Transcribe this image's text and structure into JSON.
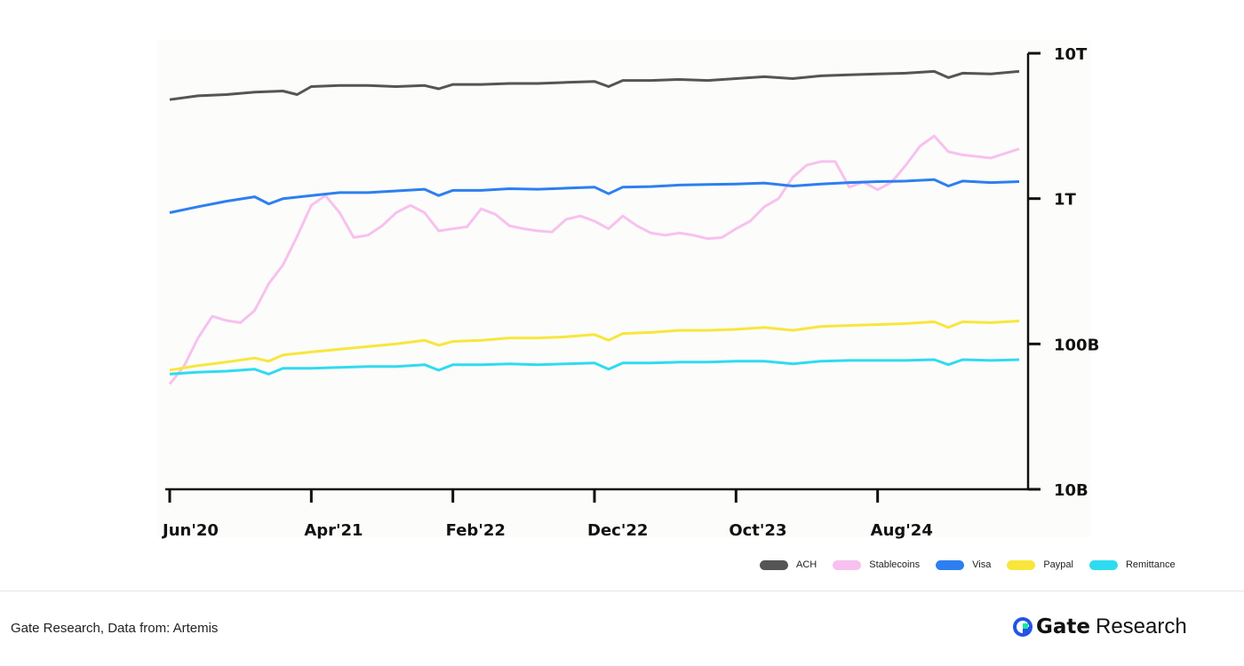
{
  "chart_data": {
    "type": "line",
    "y_scale": "log",
    "ylim": [
      10,
      10000
    ],
    "y_unit": "billions USD",
    "y_ticks": [
      {
        "value": 10,
        "label": "10B"
      },
      {
        "value": 100,
        "label": "100B"
      },
      {
        "value": 1000,
        "label": "1T"
      },
      {
        "value": 10000,
        "label": "10T"
      }
    ],
    "x_start": "2020-06",
    "x_end": "2025-06",
    "x_ticks": [
      {
        "date": "2020-06",
        "label": "Jun'20"
      },
      {
        "date": "2021-04",
        "label": "Apr'21"
      },
      {
        "date": "2022-02",
        "label": "Feb'22"
      },
      {
        "date": "2022-12",
        "label": "Dec'22"
      },
      {
        "date": "2023-10",
        "label": "Oct'23"
      },
      {
        "date": "2024-08",
        "label": "Aug'24"
      }
    ],
    "legend_position": "bottom-right",
    "grid": false,
    "series": [
      {
        "name": "ACH",
        "color": "#555555",
        "points": [
          [
            "2020-06",
            4800
          ],
          [
            "2020-08",
            5100
          ],
          [
            "2020-10",
            5200
          ],
          [
            "2020-12",
            5400
          ],
          [
            "2021-02",
            5500
          ],
          [
            "2021-03",
            5200
          ],
          [
            "2021-04",
            5900
          ],
          [
            "2021-06",
            6000
          ],
          [
            "2021-08",
            6000
          ],
          [
            "2021-10",
            5900
          ],
          [
            "2021-12",
            6000
          ],
          [
            "2022-01",
            5700
          ],
          [
            "2022-02",
            6100
          ],
          [
            "2022-04",
            6100
          ],
          [
            "2022-06",
            6200
          ],
          [
            "2022-08",
            6200
          ],
          [
            "2022-10",
            6300
          ],
          [
            "2022-12",
            6400
          ],
          [
            "2023-01",
            5900
          ],
          [
            "2023-02",
            6500
          ],
          [
            "2023-04",
            6500
          ],
          [
            "2023-06",
            6600
          ],
          [
            "2023-08",
            6500
          ],
          [
            "2023-10",
            6700
          ],
          [
            "2023-12",
            6900
          ],
          [
            "2024-02",
            6700
          ],
          [
            "2024-04",
            7000
          ],
          [
            "2024-06",
            7100
          ],
          [
            "2024-08",
            7200
          ],
          [
            "2024-10",
            7300
          ],
          [
            "2024-12",
            7500
          ],
          [
            "2025-01",
            6800
          ],
          [
            "2025-02",
            7300
          ],
          [
            "2025-04",
            7200
          ],
          [
            "2025-06",
            7500
          ]
        ]
      },
      {
        "name": "Stablecoins",
        "color": "#f7c1ef",
        "points": [
          [
            "2020-06",
            53
          ],
          [
            "2020-07",
            70
          ],
          [
            "2020-08",
            110
          ],
          [
            "2020-09",
            155
          ],
          [
            "2020-10",
            145
          ],
          [
            "2020-11",
            140
          ],
          [
            "2020-12",
            170
          ],
          [
            "2021-01",
            260
          ],
          [
            "2021-02",
            350
          ],
          [
            "2021-03",
            550
          ],
          [
            "2021-04",
            900
          ],
          [
            "2021-05",
            1050
          ],
          [
            "2021-06",
            800
          ],
          [
            "2021-07",
            540
          ],
          [
            "2021-08",
            560
          ],
          [
            "2021-09",
            650
          ],
          [
            "2021-10",
            800
          ],
          [
            "2021-11",
            900
          ],
          [
            "2021-12",
            800
          ],
          [
            "2022-01",
            600
          ],
          [
            "2022-02",
            620
          ],
          [
            "2022-03",
            640
          ],
          [
            "2022-04",
            850
          ],
          [
            "2022-05",
            780
          ],
          [
            "2022-06",
            650
          ],
          [
            "2022-07",
            620
          ],
          [
            "2022-08",
            600
          ],
          [
            "2022-09",
            590
          ],
          [
            "2022-10",
            720
          ],
          [
            "2022-11",
            760
          ],
          [
            "2022-12",
            700
          ],
          [
            "2023-01",
            620
          ],
          [
            "2023-02",
            760
          ],
          [
            "2023-03",
            650
          ],
          [
            "2023-04",
            580
          ],
          [
            "2023-05",
            560
          ],
          [
            "2023-06",
            580
          ],
          [
            "2023-07",
            560
          ],
          [
            "2023-08",
            530
          ],
          [
            "2023-09",
            540
          ],
          [
            "2023-10",
            620
          ],
          [
            "2023-11",
            700
          ],
          [
            "2023-12",
            880
          ],
          [
            "2024-01",
            1000
          ],
          [
            "2024-02",
            1400
          ],
          [
            "2024-03",
            1700
          ],
          [
            "2024-04",
            1800
          ],
          [
            "2024-05",
            1800
          ],
          [
            "2024-06",
            1200
          ],
          [
            "2024-07",
            1300
          ],
          [
            "2024-08",
            1150
          ],
          [
            "2024-09",
            1300
          ],
          [
            "2024-10",
            1700
          ],
          [
            "2024-11",
            2300
          ],
          [
            "2024-12",
            2700
          ],
          [
            "2025-01",
            2100
          ],
          [
            "2025-02",
            2000
          ],
          [
            "2025-04",
            1900
          ],
          [
            "2025-06",
            2200
          ]
        ]
      },
      {
        "name": "Visa",
        "color": "#2d7ff0",
        "points": [
          [
            "2020-06",
            800
          ],
          [
            "2020-08",
            880
          ],
          [
            "2020-10",
            960
          ],
          [
            "2020-12",
            1030
          ],
          [
            "2021-01",
            920
          ],
          [
            "2021-02",
            1000
          ],
          [
            "2021-04",
            1050
          ],
          [
            "2021-06",
            1100
          ],
          [
            "2021-08",
            1100
          ],
          [
            "2021-10",
            1130
          ],
          [
            "2021-12",
            1160
          ],
          [
            "2022-01",
            1050
          ],
          [
            "2022-02",
            1140
          ],
          [
            "2022-04",
            1140
          ],
          [
            "2022-06",
            1170
          ],
          [
            "2022-08",
            1160
          ],
          [
            "2022-10",
            1180
          ],
          [
            "2022-12",
            1200
          ],
          [
            "2023-01",
            1080
          ],
          [
            "2023-02",
            1200
          ],
          [
            "2023-04",
            1210
          ],
          [
            "2023-06",
            1240
          ],
          [
            "2023-08",
            1250
          ],
          [
            "2023-10",
            1260
          ],
          [
            "2023-12",
            1280
          ],
          [
            "2024-02",
            1220
          ],
          [
            "2024-04",
            1260
          ],
          [
            "2024-06",
            1290
          ],
          [
            "2024-08",
            1310
          ],
          [
            "2024-10",
            1320
          ],
          [
            "2024-12",
            1350
          ],
          [
            "2025-01",
            1220
          ],
          [
            "2025-02",
            1320
          ],
          [
            "2025-04",
            1290
          ],
          [
            "2025-06",
            1310
          ]
        ]
      },
      {
        "name": "Paypal",
        "color": "#f8e63c",
        "points": [
          [
            "2020-06",
            66
          ],
          [
            "2020-08",
            71
          ],
          [
            "2020-10",
            75
          ],
          [
            "2020-12",
            80
          ],
          [
            "2021-01",
            76
          ],
          [
            "2021-02",
            84
          ],
          [
            "2021-04",
            88
          ],
          [
            "2021-06",
            92
          ],
          [
            "2021-08",
            96
          ],
          [
            "2021-10",
            100
          ],
          [
            "2021-12",
            106
          ],
          [
            "2022-01",
            98
          ],
          [
            "2022-02",
            104
          ],
          [
            "2022-04",
            106
          ],
          [
            "2022-06",
            110
          ],
          [
            "2022-08",
            110
          ],
          [
            "2022-10",
            112
          ],
          [
            "2022-12",
            116
          ],
          [
            "2023-01",
            106
          ],
          [
            "2023-02",
            118
          ],
          [
            "2023-04",
            120
          ],
          [
            "2023-06",
            124
          ],
          [
            "2023-08",
            124
          ],
          [
            "2023-10",
            126
          ],
          [
            "2023-12",
            130
          ],
          [
            "2024-02",
            124
          ],
          [
            "2024-04",
            132
          ],
          [
            "2024-06",
            134
          ],
          [
            "2024-08",
            136
          ],
          [
            "2024-10",
            138
          ],
          [
            "2024-12",
            142
          ],
          [
            "2025-01",
            130
          ],
          [
            "2025-02",
            142
          ],
          [
            "2025-04",
            140
          ],
          [
            "2025-06",
            144
          ]
        ]
      },
      {
        "name": "Remittance",
        "color": "#2fdbf0",
        "points": [
          [
            "2020-06",
            62
          ],
          [
            "2020-08",
            64
          ],
          [
            "2020-10",
            65
          ],
          [
            "2020-12",
            67
          ],
          [
            "2021-01",
            62
          ],
          [
            "2021-02",
            68
          ],
          [
            "2021-04",
            68
          ],
          [
            "2021-06",
            69
          ],
          [
            "2021-08",
            70
          ],
          [
            "2021-10",
            70
          ],
          [
            "2021-12",
            72
          ],
          [
            "2022-01",
            66
          ],
          [
            "2022-02",
            72
          ],
          [
            "2022-04",
            72
          ],
          [
            "2022-06",
            73
          ],
          [
            "2022-08",
            72
          ],
          [
            "2022-10",
            73
          ],
          [
            "2022-12",
            74
          ],
          [
            "2023-01",
            67
          ],
          [
            "2023-02",
            74
          ],
          [
            "2023-04",
            74
          ],
          [
            "2023-06",
            75
          ],
          [
            "2023-08",
            75
          ],
          [
            "2023-10",
            76
          ],
          [
            "2023-12",
            76
          ],
          [
            "2024-02",
            73
          ],
          [
            "2024-04",
            76
          ],
          [
            "2024-06",
            77
          ],
          [
            "2024-08",
            77
          ],
          [
            "2024-10",
            77
          ],
          [
            "2024-12",
            78
          ],
          [
            "2025-01",
            72
          ],
          [
            "2025-02",
            78
          ],
          [
            "2025-04",
            77
          ],
          [
            "2025-06",
            78
          ]
        ]
      }
    ]
  },
  "footer": {
    "source": "Gate Research, Data from: Artemis",
    "brand_gate": "Gate",
    "brand_research": "Research"
  }
}
